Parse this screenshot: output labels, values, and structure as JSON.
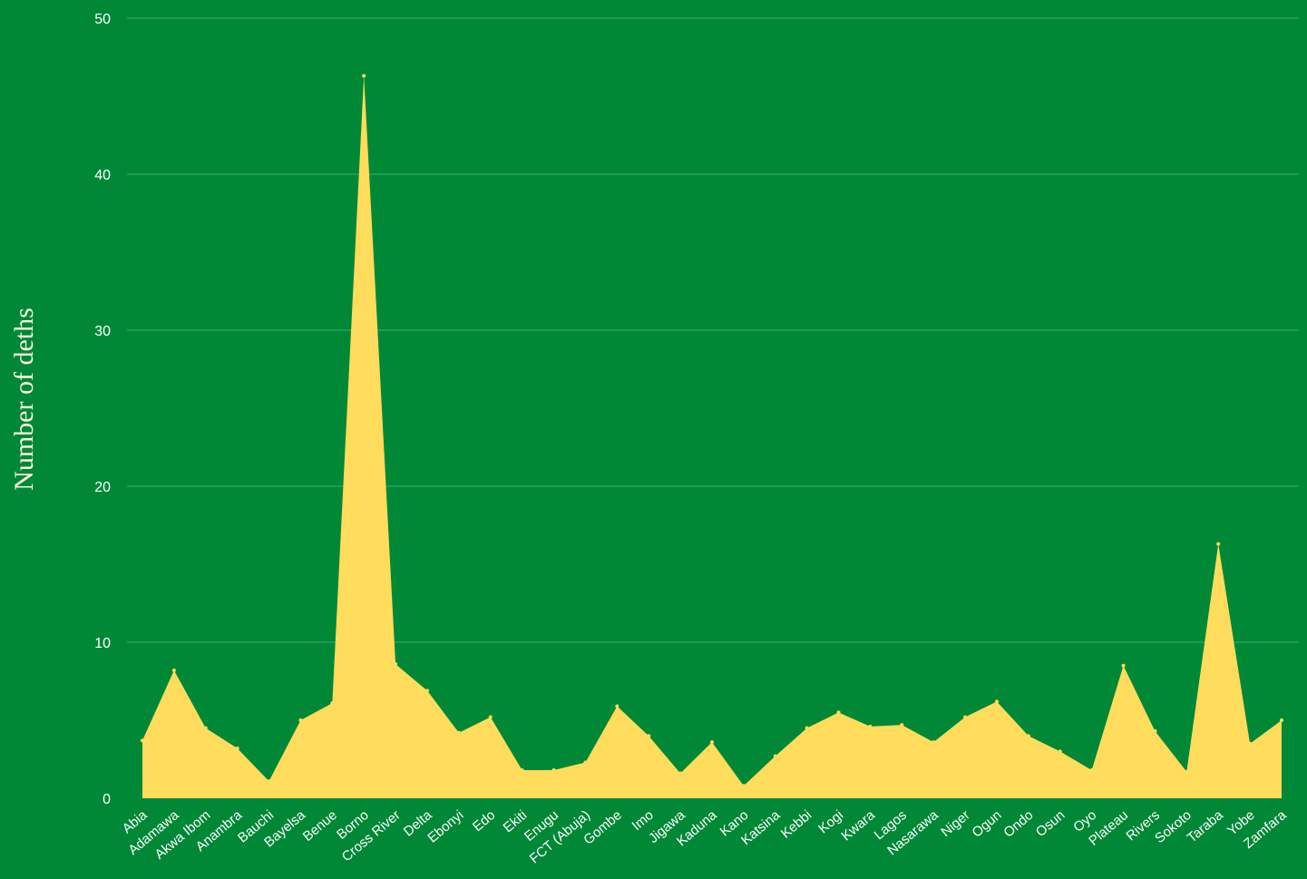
{
  "colors": {
    "background": "#008837",
    "area_fill": "#ffdc5b",
    "grid": "#3aa266",
    "text": "#ffffff"
  },
  "chart_data": {
    "type": "area",
    "ylabel": "Number of deths",
    "xlabel": "",
    "ylim": [
      0,
      50
    ],
    "yticks": [
      0,
      10,
      20,
      30,
      40,
      50
    ],
    "grid": true,
    "categories": [
      "Abia",
      "Adamawa",
      "Akwa Ibom",
      "Anambra",
      "Bauchi",
      "Bayelsa",
      "Benue",
      "Borno",
      "Cross River",
      "Delta",
      "Ebonyi",
      "Edo",
      "Ekiti",
      "Enugu",
      "FCT (Abuja)",
      "Gombe",
      "Imo",
      "Jigawa",
      "Kaduna",
      "Kano",
      "Katsina",
      "Kebbi",
      "Kogi",
      "Kwara",
      "Lagos",
      "Nasarawa",
      "Niger",
      "Ogun",
      "Ondo",
      "Osun",
      "Oyo",
      "Plateau",
      "Rivers",
      "Sokoto",
      "Taraba",
      "Yobe",
      "Zamfara"
    ],
    "values": [
      3.7,
      8.2,
      4.5,
      3.2,
      1.1,
      5.0,
      6.1,
      46.3,
      8.6,
      6.9,
      4.2,
      5.2,
      1.8,
      1.8,
      2.3,
      5.9,
      4.0,
      1.6,
      3.6,
      0.8,
      2.7,
      4.5,
      5.5,
      4.6,
      4.7,
      3.6,
      5.2,
      6.2,
      4.0,
      3.0,
      1.8,
      8.5,
      4.3,
      1.7,
      16.3,
      3.5,
      5.0
    ]
  }
}
